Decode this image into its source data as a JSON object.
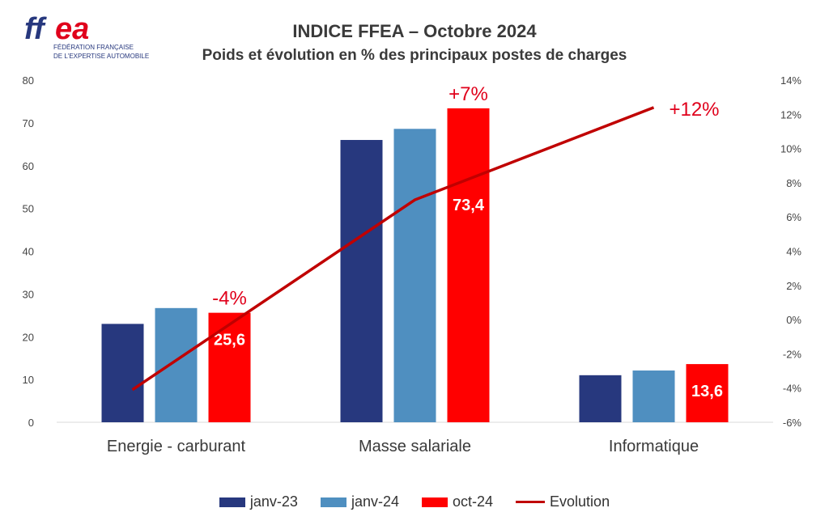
{
  "logo": {
    "mark": "ffea",
    "line1": "FÉDÉRATION FRANÇAISE",
    "line2": "DE L'EXPERTISE AUTOMOBILE"
  },
  "colors": {
    "janv23": "#27387e",
    "janv24": "#4f8fc0",
    "oct24": "#ff0000",
    "evolution": "#c00000",
    "annotation": "#e0001b"
  },
  "chart_data": {
    "type": "bar",
    "title": "INDICE FFEA – Octobre 2024",
    "subtitle": "Poids et évolution en % des principaux postes de charges",
    "categories": [
      "Energie - carburant",
      "Masse salariale",
      "Informatique"
    ],
    "series": [
      {
        "name": "janv-23",
        "values": [
          23.0,
          66.0,
          11.0
        ]
      },
      {
        "name": "janv-24",
        "values": [
          26.7,
          68.6,
          12.1
        ]
      },
      {
        "name": "oct-24",
        "values": [
          25.6,
          73.4,
          13.6
        ]
      }
    ],
    "line_series": {
      "name": "Evolution",
      "values": [
        -4.1,
        7.0,
        12.4
      ]
    },
    "ylim": [
      0,
      80
    ],
    "y_ticks": [
      "0",
      "10",
      "20",
      "30",
      "40",
      "50",
      "60",
      "70",
      "80"
    ],
    "y2lim": [
      -6,
      14
    ],
    "y2_ticks": [
      "-6%",
      "-4%",
      "-2%",
      "0%",
      "2%",
      "4%",
      "6%",
      "8%",
      "10%",
      "12%",
      "14%"
    ],
    "data_labels": [
      "25,6",
      "73,4",
      "13,6"
    ],
    "annotations": [
      "-4%",
      "+7%",
      "+12%"
    ],
    "legend": "bottom",
    "grid": false
  }
}
